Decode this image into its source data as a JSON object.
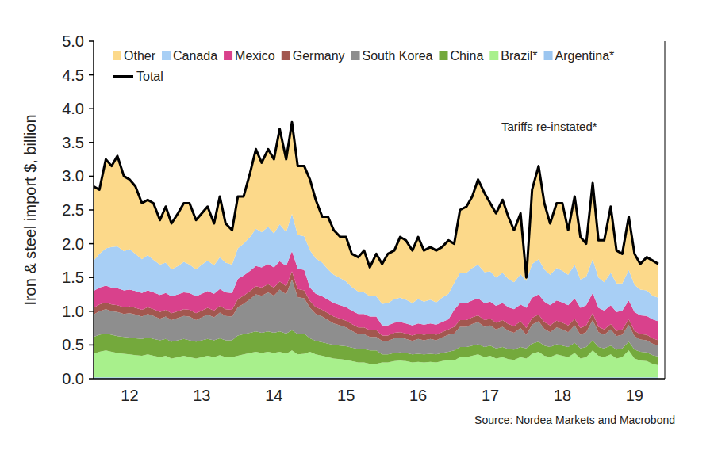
{
  "chart_data": {
    "type": "area",
    "stacked": true,
    "grid": false,
    "y_label": "Iron & steel import $, billion",
    "annotation": "Tariffs re-instated*",
    "source": "Source: Nordea Markets and Macrobond",
    "xlim": [
      2012,
      2019.92
    ],
    "xticks": [
      {
        "value": 2012.5,
        "label": "12"
      },
      {
        "value": 2013.5,
        "label": "13"
      },
      {
        "value": 2014.5,
        "label": "14"
      },
      {
        "value": 2015.5,
        "label": "15"
      },
      {
        "value": 2016.5,
        "label": "16"
      },
      {
        "value": 2017.5,
        "label": "17"
      },
      {
        "value": 2018.5,
        "label": "18"
      },
      {
        "value": 2019.5,
        "label": "19"
      }
    ],
    "ylim": [
      0,
      5
    ],
    "yticks": [
      {
        "value": 0,
        "label": "0.0"
      },
      0.5,
      {
        "value": 1,
        "label": "1.0"
      },
      1.5,
      {
        "value": 2,
        "label": "2.0"
      },
      2.5,
      {
        "value": 3,
        "label": "3.0"
      },
      3.5,
      {
        "value": 4,
        "label": "4.0"
      },
      4.5,
      {
        "value": 5,
        "label": "5.0"
      }
    ],
    "x": [
      2012,
      2012.08,
      2012.17,
      2012.25,
      2012.33,
      2012.42,
      2012.5,
      2012.58,
      2012.67,
      2012.75,
      2012.83,
      2012.92,
      2013,
      2013.08,
      2013.17,
      2013.25,
      2013.33,
      2013.42,
      2013.5,
      2013.58,
      2013.67,
      2013.75,
      2013.83,
      2013.92,
      2014,
      2014.08,
      2014.17,
      2014.25,
      2014.33,
      2014.42,
      2014.5,
      2014.58,
      2014.67,
      2014.75,
      2014.83,
      2014.92,
      2015,
      2015.08,
      2015.17,
      2015.25,
      2015.33,
      2015.42,
      2015.5,
      2015.58,
      2015.67,
      2015.75,
      2015.83,
      2015.92,
      2016,
      2016.08,
      2016.17,
      2016.25,
      2016.33,
      2016.42,
      2016.5,
      2016.58,
      2016.67,
      2016.75,
      2016.83,
      2016.92,
      2017,
      2017.08,
      2017.17,
      2017.25,
      2017.33,
      2017.42,
      2017.5,
      2017.58,
      2017.67,
      2017.75,
      2017.83,
      2017.92,
      2018,
      2018.08,
      2018.17,
      2018.25,
      2018.33,
      2018.42,
      2018.5,
      2018.58,
      2018.67,
      2018.75,
      2018.83,
      2018.92,
      2019,
      2019.08,
      2019.17,
      2019.25,
      2019.33,
      2019.42,
      2019.5,
      2019.58,
      2019.67,
      2019.75,
      2019.83
    ],
    "series": [
      {
        "name": "Other",
        "color": "#fcd98a",
        "values": [
          1.1,
          0.95,
          1.32,
          1.2,
          1.34,
          1.11,
          1.03,
          1.0,
          0.83,
          0.82,
          0.84,
          0.66,
          0.83,
          0.68,
          0.78,
          0.87,
          0.91,
          0.73,
          0.76,
          0.8,
          0.62,
          0.9,
          0.58,
          0.51,
          0.77,
          0.7,
          0.95,
          1.18,
          1.03,
          1.15,
          1.1,
          1.41,
          1.08,
          1.36,
          1.02,
          1.04,
          1.05,
          0.87,
          0.68,
          0.78,
          0.66,
          0.61,
          0.66,
          0.49,
          0.51,
          0.62,
          0.43,
          0.63,
          0.59,
          0.73,
          0.72,
          0.9,
          0.88,
          0.78,
          0.92,
          0.76,
          0.78,
          0.77,
          0.75,
          0.79,
          0.58,
          0.93,
          0.98,
          1.06,
          1.26,
          1.17,
          1.01,
          0.95,
          1.08,
          0.92,
          0.77,
          0.9,
          0.05,
          1.1,
          1.38,
          0.98,
          0.76,
          0.96,
          1.0,
          0.66,
          1.01,
          0.63,
          0.49,
          1.13,
          0.55,
          0.62,
          0.98,
          0.49,
          0.44,
          0.79,
          0.46,
          0.38,
          0.49,
          0.52,
          0.5
        ]
      },
      {
        "name": "Canada",
        "color": "#a8cff5",
        "values": [
          0.45,
          0.5,
          0.55,
          0.6,
          0.62,
          0.58,
          0.6,
          0.55,
          0.5,
          0.52,
          0.48,
          0.45,
          0.45,
          0.4,
          0.42,
          0.45,
          0.42,
          0.4,
          0.43,
          0.45,
          0.42,
          0.47,
          0.44,
          0.42,
          0.45,
          0.47,
          0.5,
          0.55,
          0.52,
          0.55,
          0.5,
          0.55,
          0.5,
          0.55,
          0.5,
          0.5,
          0.55,
          0.52,
          0.5,
          0.45,
          0.42,
          0.4,
          0.38,
          0.35,
          0.33,
          0.32,
          0.3,
          0.3,
          0.32,
          0.33,
          0.35,
          0.36,
          0.35,
          0.33,
          0.36,
          0.34,
          0.35,
          0.33,
          0.36,
          0.38,
          0.4,
          0.45,
          0.45,
          0.48,
          0.5,
          0.46,
          0.45,
          0.42,
          0.45,
          0.42,
          0.4,
          0.45,
          0.4,
          0.5,
          0.52,
          0.48,
          0.45,
          0.48,
          0.47,
          0.45,
          0.5,
          0.42,
          0.42,
          0.5,
          0.45,
          0.42,
          0.48,
          0.42,
          0.4,
          0.45,
          0.4,
          0.38,
          0.38,
          0.35,
          0.35
        ]
      },
      {
        "name": "Mexico",
        "color": "#d9418c",
        "values": [
          0.25,
          0.25,
          0.25,
          0.25,
          0.25,
          0.25,
          0.25,
          0.25,
          0.25,
          0.25,
          0.25,
          0.25,
          0.25,
          0.25,
          0.25,
          0.25,
          0.25,
          0.25,
          0.25,
          0.25,
          0.25,
          0.25,
          0.25,
          0.25,
          0.3,
          0.3,
          0.3,
          0.3,
          0.3,
          0.3,
          0.3,
          0.3,
          0.3,
          0.3,
          0.3,
          0.3,
          0.2,
          0.2,
          0.2,
          0.2,
          0.2,
          0.2,
          0.2,
          0.2,
          0.2,
          0.2,
          0.2,
          0.2,
          0.15,
          0.15,
          0.15,
          0.15,
          0.15,
          0.15,
          0.15,
          0.15,
          0.15,
          0.15,
          0.15,
          0.15,
          0.25,
          0.25,
          0.25,
          0.25,
          0.25,
          0.25,
          0.25,
          0.25,
          0.25,
          0.25,
          0.25,
          0.25,
          0.3,
          0.3,
          0.3,
          0.3,
          0.3,
          0.3,
          0.3,
          0.3,
          0.3,
          0.3,
          0.3,
          0.3,
          0.28,
          0.28,
          0.28,
          0.28,
          0.28,
          0.28,
          0.28,
          0.28,
          0.28,
          0.28,
          0.28
        ]
      },
      {
        "name": "Germany",
        "color": "#a2574f",
        "values": [
          0.1,
          0.1,
          0.1,
          0.1,
          0.1,
          0.1,
          0.1,
          0.1,
          0.1,
          0.1,
          0.1,
          0.1,
          0.1,
          0.1,
          0.1,
          0.1,
          0.1,
          0.1,
          0.1,
          0.1,
          0.1,
          0.1,
          0.1,
          0.1,
          0.12,
          0.12,
          0.12,
          0.12,
          0.12,
          0.12,
          0.12,
          0.12,
          0.12,
          0.12,
          0.12,
          0.12,
          0.1,
          0.1,
          0.1,
          0.1,
          0.1,
          0.1,
          0.1,
          0.1,
          0.1,
          0.1,
          0.1,
          0.1,
          0.08,
          0.08,
          0.08,
          0.08,
          0.08,
          0.08,
          0.08,
          0.08,
          0.08,
          0.08,
          0.08,
          0.08,
          0.1,
          0.1,
          0.1,
          0.1,
          0.1,
          0.1,
          0.1,
          0.1,
          0.1,
          0.1,
          0.1,
          0.1,
          0.1,
          0.1,
          0.1,
          0.1,
          0.1,
          0.1,
          0.1,
          0.1,
          0.1,
          0.1,
          0.1,
          0.1,
          0.08,
          0.08,
          0.08,
          0.08,
          0.08,
          0.08,
          0.08,
          0.08,
          0.08,
          0.08,
          0.08
        ]
      },
      {
        "name": "South Korea",
        "color": "#8e8e8e",
        "values": [
          0.33,
          0.35,
          0.36,
          0.35,
          0.36,
          0.34,
          0.36,
          0.35,
          0.33,
          0.35,
          0.34,
          0.32,
          0.33,
          0.32,
          0.33,
          0.34,
          0.35,
          0.32,
          0.34,
          0.36,
          0.34,
          0.38,
          0.36,
          0.35,
          0.42,
          0.45,
          0.5,
          0.55,
          0.55,
          0.58,
          0.55,
          0.62,
          0.58,
          0.75,
          0.55,
          0.52,
          0.45,
          0.4,
          0.38,
          0.35,
          0.32,
          0.3,
          0.28,
          0.25,
          0.22,
          0.22,
          0.2,
          0.2,
          0.2,
          0.2,
          0.22,
          0.22,
          0.21,
          0.2,
          0.22,
          0.21,
          0.22,
          0.21,
          0.23,
          0.25,
          0.25,
          0.3,
          0.3,
          0.32,
          0.33,
          0.3,
          0.3,
          0.28,
          0.3,
          0.27,
          0.25,
          0.28,
          0.2,
          0.28,
          0.3,
          0.25,
          0.22,
          0.25,
          0.24,
          0.22,
          0.26,
          0.2,
          0.22,
          0.3,
          0.22,
          0.2,
          0.24,
          0.2,
          0.2,
          0.25,
          0.2,
          0.18,
          0.18,
          0.17,
          0.16
        ]
      },
      {
        "name": "China",
        "color": "#74a93c",
        "values": [
          0.25,
          0.25,
          0.25,
          0.25,
          0.25,
          0.25,
          0.25,
          0.25,
          0.25,
          0.25,
          0.25,
          0.25,
          0.25,
          0.25,
          0.25,
          0.25,
          0.25,
          0.25,
          0.25,
          0.25,
          0.25,
          0.25,
          0.25,
          0.25,
          0.3,
          0.3,
          0.3,
          0.3,
          0.3,
          0.3,
          0.3,
          0.3,
          0.3,
          0.3,
          0.3,
          0.3,
          0.2,
          0.2,
          0.2,
          0.2,
          0.2,
          0.2,
          0.2,
          0.2,
          0.2,
          0.2,
          0.2,
          0.2,
          0.12,
          0.12,
          0.12,
          0.12,
          0.12,
          0.12,
          0.12,
          0.12,
          0.12,
          0.12,
          0.12,
          0.12,
          0.15,
          0.15,
          0.15,
          0.15,
          0.15,
          0.15,
          0.15,
          0.15,
          0.15,
          0.15,
          0.15,
          0.15,
          0.15,
          0.15,
          0.15,
          0.15,
          0.15,
          0.15,
          0.15,
          0.15,
          0.15,
          0.15,
          0.15,
          0.15,
          0.13,
          0.13,
          0.13,
          0.13,
          0.13,
          0.13,
          0.13,
          0.13,
          0.13,
          0.13,
          0.13
        ]
      },
      {
        "name": "Brazil*",
        "color": "#a8f08c",
        "values": [
          0.35,
          0.38,
          0.4,
          0.38,
          0.36,
          0.35,
          0.34,
          0.33,
          0.32,
          0.34,
          0.32,
          0.3,
          0.32,
          0.28,
          0.3,
          0.32,
          0.3,
          0.28,
          0.3,
          0.32,
          0.3,
          0.33,
          0.3,
          0.3,
          0.32,
          0.34,
          0.36,
          0.38,
          0.36,
          0.38,
          0.36,
          0.38,
          0.35,
          0.4,
          0.34,
          0.35,
          0.38,
          0.34,
          0.32,
          0.3,
          0.28,
          0.27,
          0.26,
          0.24,
          0.22,
          0.22,
          0.2,
          0.2,
          0.22,
          0.22,
          0.24,
          0.25,
          0.24,
          0.22,
          0.23,
          0.22,
          0.23,
          0.22,
          0.24,
          0.26,
          0.25,
          0.3,
          0.3,
          0.32,
          0.34,
          0.3,
          0.32,
          0.28,
          0.3,
          0.27,
          0.26,
          0.3,
          0.28,
          0.35,
          0.38,
          0.32,
          0.3,
          0.34,
          0.32,
          0.3,
          0.36,
          0.28,
          0.3,
          0.4,
          0.32,
          0.3,
          0.34,
          0.28,
          0.3,
          0.4,
          0.28,
          0.25,
          0.24,
          0.2,
          0.18
        ]
      },
      {
        "name": "Argentina*",
        "color": "#9cc6f0",
        "values": [
          0.02,
          0.02,
          0.02,
          0.02,
          0.02,
          0.02,
          0.02,
          0.02,
          0.02,
          0.02,
          0.02,
          0.02,
          0.02,
          0.02,
          0.02,
          0.02,
          0.02,
          0.02,
          0.02,
          0.02,
          0.02,
          0.02,
          0.02,
          0.02,
          0.02,
          0.02,
          0.02,
          0.02,
          0.02,
          0.02,
          0.02,
          0.02,
          0.02,
          0.02,
          0.02,
          0.02,
          0.02,
          0.02,
          0.02,
          0.02,
          0.02,
          0.02,
          0.02,
          0.02,
          0.02,
          0.02,
          0.02,
          0.02,
          0.02,
          0.02,
          0.02,
          0.02,
          0.02,
          0.02,
          0.02,
          0.02,
          0.02,
          0.02,
          0.02,
          0.02,
          0.02,
          0.02,
          0.02,
          0.02,
          0.02,
          0.02,
          0.02,
          0.02,
          0.02,
          0.02,
          0.02,
          0.02,
          0.02,
          0.02,
          0.02,
          0.02,
          0.02,
          0.02,
          0.02,
          0.02,
          0.02,
          0.02,
          0.02,
          0.02,
          0.02,
          0.02,
          0.02,
          0.02,
          0.02,
          0.02,
          0.02,
          0.02,
          0.02,
          0.02,
          0.02
        ]
      },
      {
        "name": "Total",
        "type": "line",
        "stacked": false,
        "color": "#000000",
        "values": [
          2.85,
          2.8,
          3.25,
          3.15,
          3.3,
          3.0,
          2.95,
          2.85,
          2.6,
          2.65,
          2.6,
          2.35,
          2.55,
          2.3,
          2.45,
          2.6,
          2.6,
          2.35,
          2.45,
          2.55,
          2.3,
          2.7,
          2.3,
          2.2,
          2.7,
          2.7,
          3.05,
          3.4,
          3.2,
          3.4,
          3.25,
          3.7,
          3.25,
          3.8,
          3.15,
          3.15,
          2.95,
          2.65,
          2.4,
          2.4,
          2.2,
          2.1,
          2.1,
          1.85,
          1.8,
          1.9,
          1.65,
          1.85,
          1.7,
          1.85,
          1.9,
          2.1,
          2.05,
          1.9,
          2.1,
          1.9,
          1.95,
          1.9,
          1.95,
          2.05,
          2.0,
          2.5,
          2.55,
          2.7,
          2.95,
          2.75,
          2.6,
          2.45,
          2.65,
          2.4,
          2.2,
          2.45,
          1.5,
          2.8,
          3.15,
          2.6,
          2.3,
          2.6,
          2.6,
          2.2,
          2.7,
          2.1,
          2.0,
          2.9,
          2.05,
          2.05,
          2.55,
          1.9,
          1.85,
          2.4,
          1.85,
          1.7,
          1.8,
          1.75,
          1.7
        ]
      }
    ]
  }
}
